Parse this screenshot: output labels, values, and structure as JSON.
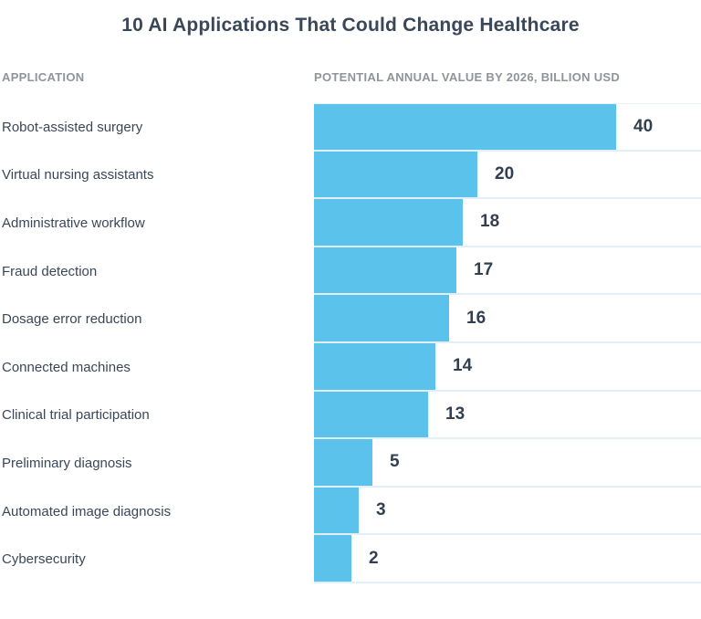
{
  "title": "10 AI Applications That Could Change Healthcare",
  "columns": {
    "application_header": "APPLICATION",
    "value_header": "POTENTIAL ANNUAL VALUE BY 2026, BILLION USD"
  },
  "colors": {
    "background": "#ffffff",
    "bar": "#5bc2eb",
    "row_divider": "#e1effb",
    "title_text": "#3a4759",
    "label_text": "#3a4759",
    "value_text": "#323f50",
    "header_text": "#8f949b"
  },
  "chart_data": {
    "type": "bar",
    "orientation": "horizontal",
    "title": "10 AI Applications That Could Change Healthcare",
    "xlabel": "POTENTIAL ANNUAL VALUE BY 2026, BILLION USD",
    "ylabel": "APPLICATION",
    "categories": [
      "Robot-assisted surgery",
      "Virtual nursing assistants",
      "Administrative workflow",
      "Fraud detection",
      "Dosage error reduction",
      "Connected machines",
      "Clinical trial participation",
      "Preliminary diagnosis",
      "Automated image diagnosis",
      "Cybersecurity"
    ],
    "values": [
      40,
      20,
      18,
      17,
      16,
      14,
      13,
      5,
      3,
      2
    ],
    "xlim": [
      0,
      40
    ],
    "grid": false,
    "legend": false,
    "bar_color": "#5bc2eb",
    "value_labels_shown": true
  }
}
